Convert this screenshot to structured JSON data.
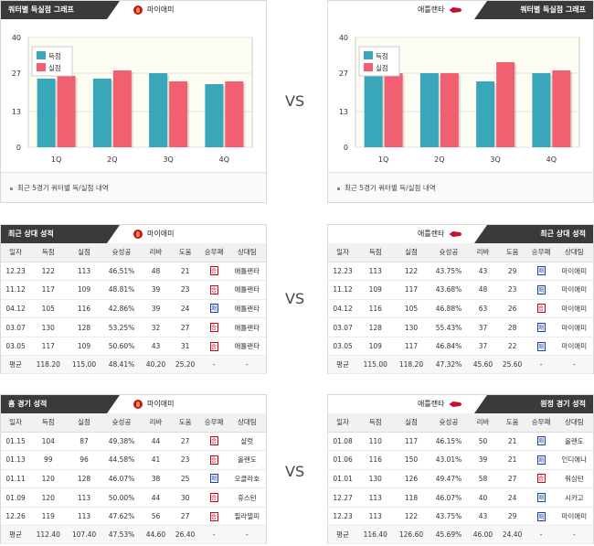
{
  "vs": "VS",
  "colors": {
    "score": "#3aa6b9",
    "conceded": "#f06070",
    "win": "#d0021b",
    "lose": "#1a3fb0"
  },
  "headers": {
    "quarter": "쿼터별 득실점 그래프",
    "recent": "최근 상대 성적",
    "home": "홈 경기 성적",
    "away": "원정 경기 성적"
  },
  "teams": {
    "left": "마이애미",
    "right": "애틀랜타"
  },
  "chart_footer": "최근 5경기 쿼터별 득/실점 내역",
  "chart_data": [
    {
      "type": "bar",
      "categories": [
        "1Q",
        "2Q",
        "3Q",
        "4Q"
      ],
      "series": [
        {
          "name": "득점",
          "values": [
            25,
            25,
            27,
            23
          ]
        },
        {
          "name": "실점",
          "values": [
            26,
            28,
            24,
            24
          ]
        }
      ],
      "yticks": [
        "0",
        "13",
        "27",
        "40"
      ],
      "ylim": [
        0,
        40
      ],
      "legend": "top-left"
    },
    {
      "type": "bar",
      "categories": [
        "1Q",
        "2Q",
        "3Q",
        "4Q"
      ],
      "series": [
        {
          "name": "득점",
          "values": [
            28,
            27,
            24,
            27
          ]
        },
        {
          "name": "실점",
          "values": [
            27,
            27,
            31,
            28
          ]
        }
      ],
      "yticks": [
        "0",
        "13",
        "27",
        "40"
      ],
      "ylim": [
        0,
        40
      ],
      "legend": "top-left"
    }
  ],
  "columns": [
    "일자",
    "득점",
    "실점",
    "슛성공",
    "리바",
    "도움",
    "승무패",
    "상대팀"
  ],
  "recent_left": {
    "rows": [
      [
        "12.23",
        "122",
        "113",
        "46.51%",
        "48",
        "21",
        "W",
        "애틀랜타"
      ],
      [
        "11.12",
        "117",
        "109",
        "48.81%",
        "39",
        "23",
        "W",
        "애틀랜타"
      ],
      [
        "04.12",
        "105",
        "116",
        "42.86%",
        "39",
        "24",
        "L",
        "애틀랜타"
      ],
      [
        "03.07",
        "130",
        "128",
        "53.25%",
        "32",
        "27",
        "W",
        "애틀랜타"
      ],
      [
        "03.05",
        "117",
        "109",
        "50.60%",
        "43",
        "31",
        "W",
        "애틀랜타"
      ]
    ],
    "avg": [
      "평균",
      "118.20",
      "115.00",
      "48.41%",
      "40.20",
      "25.20",
      "-",
      "-"
    ]
  },
  "recent_right": {
    "rows": [
      [
        "12.23",
        "113",
        "122",
        "43.75%",
        "43",
        "29",
        "L",
        "마이애미"
      ],
      [
        "11.12",
        "109",
        "117",
        "43.68%",
        "48",
        "23",
        "L",
        "마이애미"
      ],
      [
        "04.12",
        "116",
        "105",
        "46.88%",
        "63",
        "26",
        "W",
        "마이애미"
      ],
      [
        "03.07",
        "128",
        "130",
        "55.43%",
        "37",
        "28",
        "L",
        "마이애미"
      ],
      [
        "03.05",
        "109",
        "117",
        "46.84%",
        "37",
        "22",
        "L",
        "마이애미"
      ]
    ],
    "avg": [
      "평균",
      "115.00",
      "118.20",
      "47.32%",
      "45.60",
      "25.60",
      "-",
      "-"
    ]
  },
  "home_left": {
    "rows": [
      [
        "01.15",
        "104",
        "87",
        "49.38%",
        "44",
        "27",
        "W",
        "샬럿"
      ],
      [
        "01.13",
        "99",
        "96",
        "44.58%",
        "41",
        "23",
        "W",
        "올랜도"
      ],
      [
        "01.11",
        "120",
        "128",
        "46.07%",
        "38",
        "25",
        "L",
        "오클라호"
      ],
      [
        "01.09",
        "120",
        "113",
        "50.00%",
        "44",
        "30",
        "W",
        "휴스턴"
      ],
      [
        "12.26",
        "119",
        "113",
        "47.62%",
        "56",
        "27",
        "W",
        "필라델피"
      ]
    ],
    "avg": [
      "평균",
      "112.40",
      "107.40",
      "47.53%",
      "44.60",
      "26.40",
      "-",
      "-"
    ]
  },
  "away_right": {
    "rows": [
      [
        "01.08",
        "110",
        "117",
        "46.15%",
        "50",
        "21",
        "L",
        "올랜도"
      ],
      [
        "01.06",
        "116",
        "150",
        "43.01%",
        "39",
        "21",
        "L",
        "인디애나"
      ],
      [
        "01.01",
        "130",
        "126",
        "49.47%",
        "58",
        "27",
        "W",
        "워싱턴"
      ],
      [
        "12.27",
        "113",
        "118",
        "46.07%",
        "40",
        "24",
        "L",
        "시카고"
      ],
      [
        "12.23",
        "113",
        "122",
        "43.75%",
        "43",
        "29",
        "L",
        "마이애미"
      ]
    ],
    "avg": [
      "평균",
      "116.40",
      "126.60",
      "45.69%",
      "46.00",
      "24.40",
      "-",
      "-"
    ]
  },
  "result_labels": {
    "W": "승",
    "L": "패"
  },
  "legend": {
    "score": "득점",
    "conceded": "실점"
  }
}
